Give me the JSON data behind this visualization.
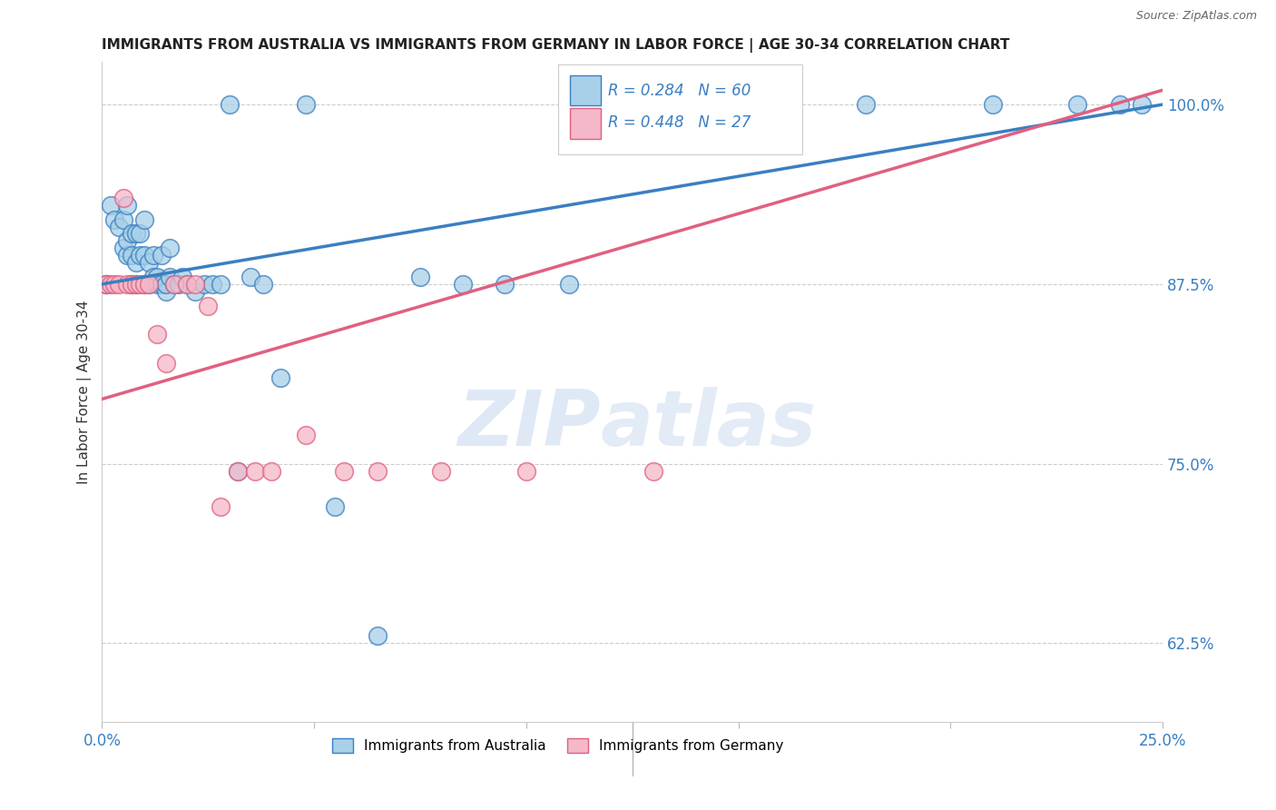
{
  "title": "IMMIGRANTS FROM AUSTRALIA VS IMMIGRANTS FROM GERMANY IN LABOR FORCE | AGE 30-34 CORRELATION CHART",
  "source": "Source: ZipAtlas.com",
  "ylabel": "In Labor Force | Age 30-34",
  "xlim": [
    0.0,
    0.25
  ],
  "ylim": [
    0.57,
    1.03
  ],
  "yticks": [
    0.625,
    0.75,
    0.875,
    1.0
  ],
  "ytick_labels": [
    "62.5%",
    "75.0%",
    "87.5%",
    "100.0%"
  ],
  "xticks": [
    0.0,
    0.05,
    0.1,
    0.15,
    0.2,
    0.25
  ],
  "xtick_labels": [
    "0.0%",
    "",
    "",
    "",
    "",
    "25.0%"
  ],
  "blue_R": 0.284,
  "blue_N": 60,
  "pink_R": 0.448,
  "pink_N": 27,
  "blue_color": "#a8d0e8",
  "pink_color": "#f5b8c8",
  "blue_line_color": "#3a7fc1",
  "pink_line_color": "#e06080",
  "legend_label_blue": "Immigrants from Australia",
  "legend_label_pink": "Immigrants from Germany",
  "watermark_zip": "ZIP",
  "watermark_atlas": "atlas",
  "blue_line_x0": 0.0,
  "blue_line_y0": 0.875,
  "blue_line_x1": 0.25,
  "blue_line_y1": 1.0,
  "pink_line_x0": 0.0,
  "pink_line_y0": 0.795,
  "pink_line_x1": 0.25,
  "pink_line_y1": 1.01,
  "blue_x": [
    0.001,
    0.001,
    0.002,
    0.003,
    0.004,
    0.005,
    0.005,
    0.006,
    0.006,
    0.006,
    0.007,
    0.007,
    0.007,
    0.008,
    0.008,
    0.008,
    0.009,
    0.009,
    0.01,
    0.01,
    0.01,
    0.011,
    0.011,
    0.012,
    0.012,
    0.013,
    0.013,
    0.014,
    0.014,
    0.015,
    0.015,
    0.016,
    0.016,
    0.017,
    0.018,
    0.019,
    0.02,
    0.022,
    0.024,
    0.026,
    0.028,
    0.03,
    0.032,
    0.035,
    0.038,
    0.042,
    0.048,
    0.055,
    0.065,
    0.075,
    0.085,
    0.095,
    0.11,
    0.13,
    0.155,
    0.18,
    0.21,
    0.23,
    0.24,
    0.245
  ],
  "blue_y": [
    0.875,
    0.875,
    0.93,
    0.92,
    0.915,
    0.9,
    0.92,
    0.895,
    0.905,
    0.93,
    0.875,
    0.895,
    0.91,
    0.875,
    0.89,
    0.91,
    0.895,
    0.91,
    0.875,
    0.895,
    0.92,
    0.89,
    0.875,
    0.88,
    0.895,
    0.88,
    0.875,
    0.875,
    0.895,
    0.87,
    0.875,
    0.88,
    0.9,
    0.875,
    0.875,
    0.88,
    0.875,
    0.87,
    0.875,
    0.875,
    0.875,
    1.0,
    0.745,
    0.88,
    0.875,
    0.81,
    1.0,
    0.72,
    0.63,
    0.88,
    0.875,
    0.875,
    0.875,
    1.0,
    1.0,
    1.0,
    1.0,
    1.0,
    1.0,
    1.0
  ],
  "pink_x": [
    0.001,
    0.002,
    0.003,
    0.004,
    0.005,
    0.006,
    0.007,
    0.008,
    0.009,
    0.01,
    0.011,
    0.013,
    0.015,
    0.017,
    0.02,
    0.022,
    0.025,
    0.028,
    0.032,
    0.036,
    0.04,
    0.048,
    0.057,
    0.065,
    0.08,
    0.1,
    0.13
  ],
  "pink_y": [
    0.875,
    0.875,
    0.875,
    0.875,
    0.935,
    0.875,
    0.875,
    0.875,
    0.875,
    0.875,
    0.875,
    0.84,
    0.82,
    0.875,
    0.875,
    0.875,
    0.86,
    0.72,
    0.745,
    0.745,
    0.745,
    0.77,
    0.745,
    0.745,
    0.745,
    0.745,
    0.745
  ]
}
